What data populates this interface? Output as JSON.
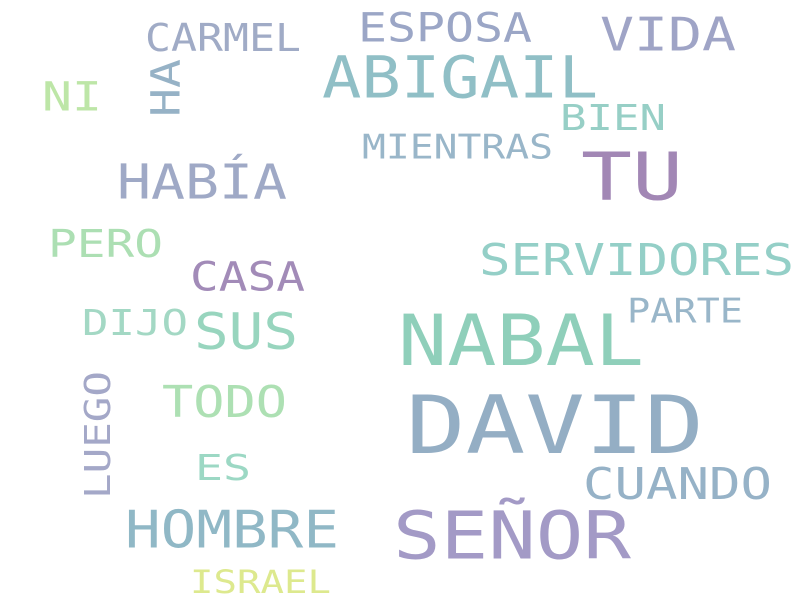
{
  "words": [
    {
      "text": "DAVID",
      "color": "#94aec4"
    },
    {
      "text": "NABAL",
      "color": "#8fcfba"
    },
    {
      "text": "SEÑOR",
      "color": "#a39ac6"
    },
    {
      "text": "TU",
      "color": "#a287b5"
    },
    {
      "text": "ABIGAIL",
      "color": "#90bfc6"
    },
    {
      "text": "SERVIDORES",
      "color": "#94cfc7"
    },
    {
      "text": "HOMBRE",
      "color": "#90b8c6"
    },
    {
      "text": "CUANDO",
      "color": "#96b2c7"
    },
    {
      "text": "HABÍA",
      "color": "#9fa9c6"
    },
    {
      "text": "VIDA",
      "color": "#9fa4c6"
    },
    {
      "text": "ESPOSA",
      "color": "#9ba6c6"
    },
    {
      "text": "SUS",
      "color": "#98d5be"
    },
    {
      "text": "TODO",
      "color": "#ade0b3"
    },
    {
      "text": "CASA",
      "color": "#a28bb8"
    },
    {
      "text": "CARMEL",
      "color": "#a0abc6"
    },
    {
      "text": "PERO",
      "color": "#acdfb3"
    },
    {
      "text": "NI",
      "color": "#bde6a7"
    },
    {
      "text": "BIEN",
      "color": "#97cfc6"
    },
    {
      "text": "MIENTRAS",
      "color": "#99b6c9"
    },
    {
      "text": "LUEGO",
      "color": "#a4a8c8"
    },
    {
      "text": "HA",
      "color": "#96b2c6"
    },
    {
      "text": "DIJO",
      "color": "#a3d8c4"
    },
    {
      "text": "ES",
      "color": "#9cd8c4"
    },
    {
      "text": "PARTE",
      "color": "#99b6c9"
    },
    {
      "text": "ISRAEL",
      "color": "#dde98e"
    }
  ]
}
